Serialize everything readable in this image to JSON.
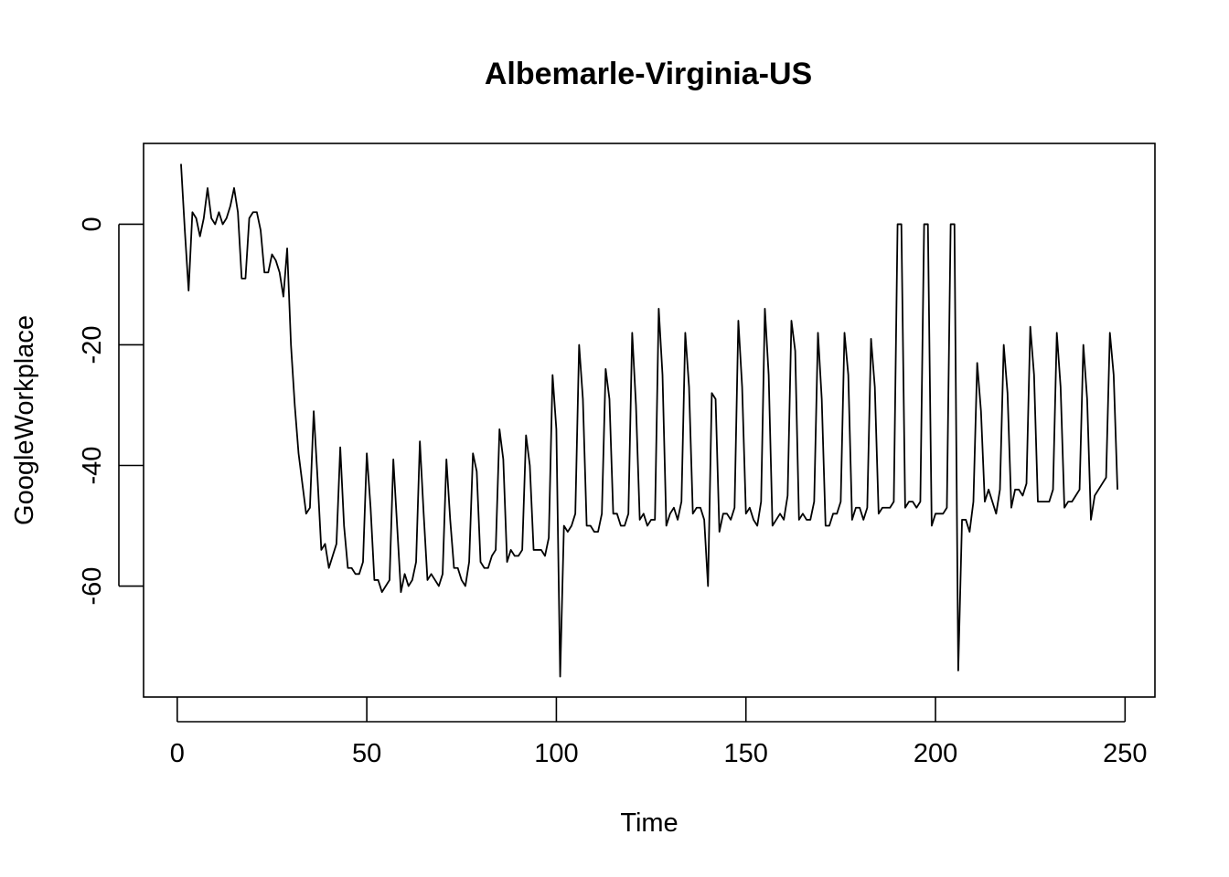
{
  "chart_data": {
    "type": "line",
    "title": "Albemarle-Virginia-US",
    "xlabel": "Time",
    "ylabel": "GoogleWorkplace",
    "xlim": [
      1,
      248
    ],
    "ylim": [
      -75,
      10
    ],
    "xticks": [
      0,
      50,
      100,
      150,
      200,
      250
    ],
    "yticks": [
      0,
      -20,
      -40,
      -60
    ],
    "grid": false,
    "series": [
      {
        "x_start": 1,
        "values": [
          10,
          -1,
          -11,
          2,
          1,
          -2,
          1,
          6,
          1,
          0,
          2,
          0,
          1,
          3,
          6,
          2,
          -9,
          -9,
          1,
          2,
          2,
          -1,
          -8,
          -8,
          -5,
          -6,
          -8,
          -12,
          -4,
          -20,
          -30,
          -38,
          -43,
          -48,
          -47,
          -31,
          -42,
          -54,
          -53,
          -57,
          -55,
          -53,
          -37,
          -50,
          -57,
          -57,
          -58,
          -58,
          -56,
          -38,
          -47,
          -59,
          -59,
          -61,
          -60,
          -59,
          -39,
          -50,
          -61,
          -58,
          -60,
          -59,
          -56,
          -36,
          -48,
          -59,
          -58,
          -59,
          -60,
          -58,
          -39,
          -49,
          -57,
          -57,
          -59,
          -60,
          -56,
          -38,
          -41,
          -56,
          -57,
          -57,
          -55,
          -54,
          -34,
          -39,
          -56,
          -54,
          -55,
          -55,
          -54,
          -35,
          -40,
          -54,
          -54,
          -54,
          -55,
          -52,
          -25,
          -34,
          -75,
          -50,
          -51,
          -50,
          -48,
          -20,
          -29,
          -50,
          -50,
          -51,
          -51,
          -48,
          -24,
          -29,
          -48,
          -48,
          -50,
          -50,
          -48,
          -18,
          -30,
          -49,
          -48,
          -50,
          -49,
          -49,
          -14,
          -25,
          -50,
          -48,
          -47,
          -49,
          -46,
          -18,
          -27,
          -48,
          -47,
          -47,
          -49,
          -60,
          -28,
          -29,
          -51,
          -48,
          -48,
          -49,
          -47,
          -16,
          -27,
          -48,
          -47,
          -49,
          -50,
          -46,
          -14,
          -25,
          -50,
          -49,
          -48,
          -49,
          -45,
          -16,
          -21,
          -49,
          -48,
          -49,
          -49,
          -46,
          -18,
          -29,
          -50,
          -50,
          -48,
          -48,
          -46,
          -18,
          -25,
          -49,
          -47,
          -47,
          -49,
          -47,
          -19,
          -27,
          -48,
          -47,
          -47,
          -47,
          -46,
          0,
          0,
          -47,
          -46,
          -46,
          -47,
          -46,
          0,
          0,
          -50,
          -48,
          -48,
          -48,
          -47,
          0,
          0,
          -74,
          -49,
          -49,
          -51,
          -46,
          -23,
          -31,
          -46,
          -44,
          -46,
          -48,
          -44,
          -20,
          -28,
          -47,
          -44,
          -44,
          -45,
          -43,
          -17,
          -25,
          -46,
          -46,
          -46,
          -46,
          -44,
          -18,
          -27,
          -47,
          -46,
          -46,
          -45,
          -44,
          -20,
          -29,
          -49,
          -45,
          -44,
          -43,
          -42,
          -18,
          -25,
          -44
        ]
      }
    ]
  }
}
